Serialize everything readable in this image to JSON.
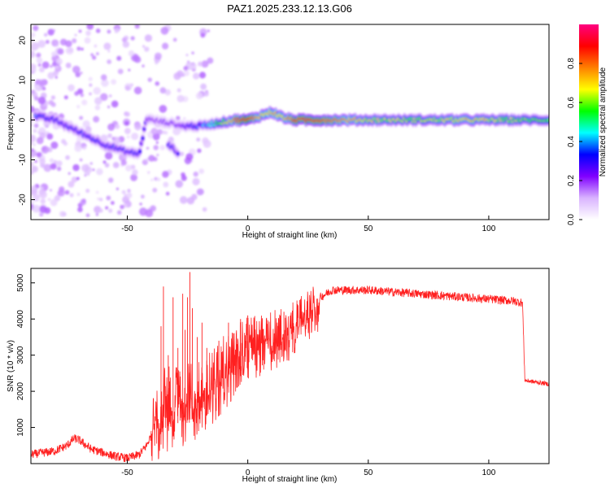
{
  "title": "PAZ1.2025.233.12.13.G06",
  "chart_data": [
    {
      "type": "heatmap",
      "name": "spectrogram",
      "xlabel": "Height of straight line (km)",
      "ylabel": "Frequency (Hz)",
      "xlim": [
        -90,
        125
      ],
      "ylim": [
        -25,
        24
      ],
      "x_ticks": [
        -50,
        0,
        50,
        100
      ],
      "y_ticks": [
        -20,
        -10,
        0,
        10,
        20
      ],
      "colorbar": {
        "label": "Normalized spectral amplitude",
        "range": [
          0,
          1
        ],
        "ticks": [
          "0.0",
          "0.2",
          "0.4",
          "0.6",
          "0.8"
        ],
        "colors": [
          "#ffffff",
          "#d9b3ff",
          "#8000ff",
          "#0000ff",
          "#00ffff",
          "#00ff00",
          "#ffff00",
          "#ff8000",
          "#ff0000",
          "#ff0080"
        ]
      },
      "main_track": {
        "x": [
          -88,
          -80,
          -75,
          -70,
          -65,
          -60,
          -55,
          -50,
          -45,
          -42,
          -40,
          -35,
          -30,
          -28,
          -25,
          -20,
          -15,
          -10,
          -5,
          0,
          5,
          10,
          15,
          20,
          30,
          50,
          70,
          90,
          110,
          125
        ],
        "freq": [
          1,
          0,
          -1.5,
          -3,
          -4.5,
          -6,
          -7,
          -8,
          -8.5,
          0.5,
          0,
          -0.5,
          -1,
          -1.5,
          -1.5,
          -1.5,
          -1,
          -0.5,
          0,
          0,
          1,
          2,
          0.5,
          0,
          0,
          0,
          0,
          0,
          0,
          0
        ],
        "amplitude": [
          0.35,
          0.3,
          0.3,
          0.3,
          0.32,
          0.3,
          0.3,
          0.28,
          0.3,
          0.25,
          0.2,
          0.2,
          0.22,
          0.25,
          0.3,
          0.35,
          0.45,
          0.6,
          0.8,
          0.9,
          0.7,
          0.75,
          0.7,
          0.85,
          0.85,
          0.65,
          0.6,
          0.7,
          0.6,
          0.55
        ]
      },
      "secondary_track": {
        "x": [
          -33,
          -31,
          -29
        ],
        "freq": [
          -6,
          -7,
          -8.5
        ],
        "amplitude": [
          0.3,
          0.3,
          0.25
        ]
      }
    },
    {
      "type": "line",
      "name": "snr",
      "xlabel": "Height of straight line (km)",
      "ylabel": "SNR (10 * v/v)",
      "xlim": [
        -90,
        125
      ],
      "ylim": [
        0,
        5400
      ],
      "x_ticks": [
        -50,
        0,
        50,
        100
      ],
      "y_ticks": [
        1000,
        2000,
        3000,
        4000,
        5000
      ],
      "color": "#ff2020",
      "trend": {
        "x": [
          -90,
          -80,
          -75,
          -72,
          -70,
          -65,
          -60,
          -55,
          -50,
          -45,
          -42,
          -40,
          -38,
          -35,
          -30,
          -25,
          -20,
          -15,
          -10,
          -5,
          0,
          5,
          10,
          15,
          20,
          25,
          30,
          35,
          40,
          50,
          60,
          70,
          80,
          90,
          100,
          110,
          114,
          115,
          120,
          125
        ],
        "y": [
          250,
          350,
          500,
          700,
          650,
          400,
          300,
          200,
          150,
          250,
          500,
          800,
          1300,
          1800,
          1900,
          2000,
          2100,
          2400,
          2800,
          3100,
          3400,
          3500,
          3600,
          3750,
          4000,
          4300,
          4600,
          4800,
          4800,
          4800,
          4750,
          4700,
          4650,
          4600,
          4550,
          4500,
          4450,
          2300,
          2250,
          2200
        ]
      },
      "spikes": {
        "x": [
          -36,
          -35,
          -33,
          -31,
          -29,
          -27,
          -26,
          -25,
          -24,
          -23,
          -21,
          -19,
          -17,
          -12,
          -8,
          -3,
          0,
          6,
          11,
          15
        ],
        "y": [
          3800,
          4900,
          3000,
          4600,
          3200,
          4700,
          3700,
          4600,
          5300,
          4300,
          3500,
          3900,
          3200,
          3400,
          3900,
          4000,
          4100,
          4000,
          3600,
          4200
        ]
      }
    }
  ]
}
